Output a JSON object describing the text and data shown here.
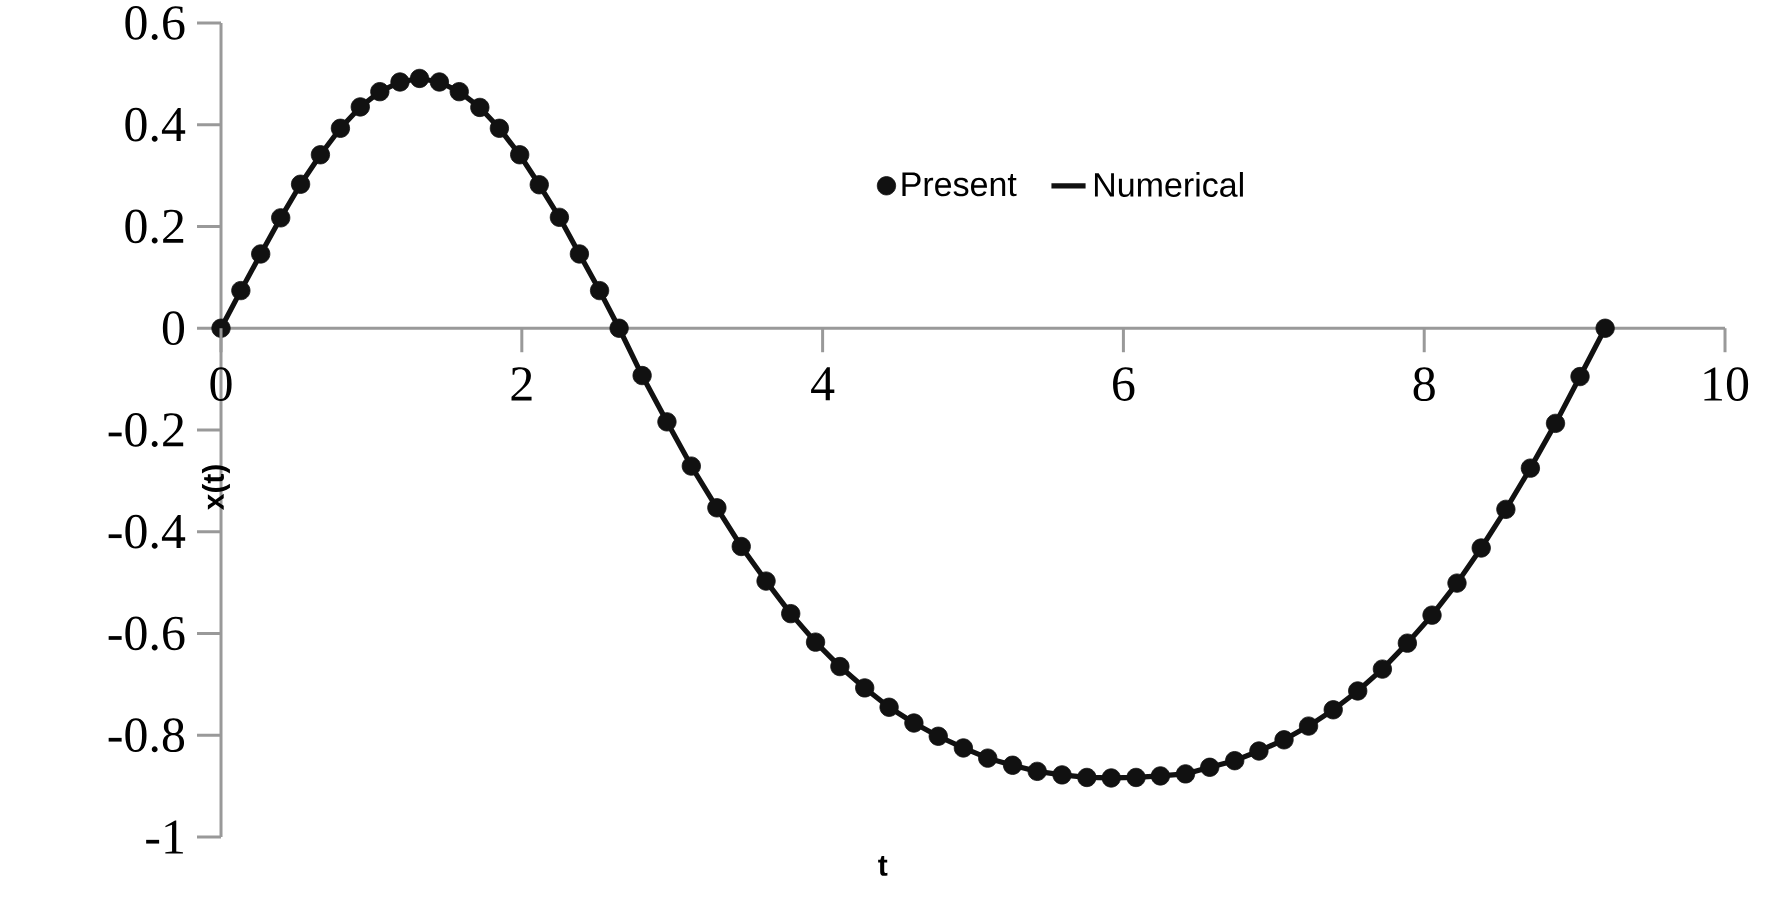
{
  "chart_data": {
    "type": "line",
    "xlabel": "t",
    "ylabel": "x(t)",
    "xlim": [
      0,
      10
    ],
    "ylim": [
      -1,
      0.6
    ],
    "xticks": [
      0,
      2,
      4,
      6,
      8,
      10
    ],
    "yticks": [
      -1,
      -0.8,
      -0.6,
      -0.4,
      -0.2,
      0,
      0.2,
      0.4,
      0.6
    ],
    "grid": false,
    "legend": "top",
    "marker": "circle",
    "series": [
      {
        "name": "Present",
        "type": "scatter",
        "color": "#111111",
        "x": [
          0,
          0.132,
          0.264,
          0.397,
          0.529,
          0.661,
          0.794,
          0.926,
          1.056,
          1.19,
          1.32,
          1.452,
          1.584,
          1.721,
          1.851,
          1.986,
          2.116,
          2.25,
          2.383,
          2.517,
          2.647,
          2.8,
          2.965,
          3.127,
          3.297,
          3.459,
          3.624,
          3.788,
          3.953,
          4.115,
          4.28,
          4.442,
          4.607,
          4.769,
          4.936,
          5.098,
          5.263,
          5.427,
          5.592,
          5.757,
          5.919,
          6.084,
          6.246,
          6.413,
          6.574,
          6.74,
          6.901,
          7.068,
          7.231,
          7.395,
          7.558,
          7.722,
          7.888,
          8.052,
          8.218,
          8.379,
          8.543,
          8.706,
          8.873,
          9.036,
          9.203
        ],
        "values": [
          0,
          0.074,
          0.146,
          0.217,
          0.283,
          0.341,
          0.393,
          0.435,
          0.465,
          0.484,
          0.491,
          0.484,
          0.465,
          0.434,
          0.393,
          0.341,
          0.282,
          0.218,
          0.146,
          0.074,
          0,
          -0.093,
          -0.184,
          -0.271,
          -0.353,
          -0.429,
          -0.497,
          -0.561,
          -0.617,
          -0.665,
          -0.707,
          -0.745,
          -0.776,
          -0.802,
          -0.825,
          -0.845,
          -0.859,
          -0.871,
          -0.878,
          -0.883,
          -0.884,
          -0.883,
          -0.88,
          -0.876,
          -0.863,
          -0.85,
          -0.831,
          -0.809,
          -0.782,
          -0.75,
          -0.713,
          -0.67,
          -0.619,
          -0.564,
          -0.501,
          -0.432,
          -0.356,
          -0.275,
          -0.187,
          -0.095,
          0
        ]
      },
      {
        "name": "Numerical",
        "type": "line",
        "marker": "none",
        "line_style": "solid",
        "color": "#111111",
        "x": [
          0,
          0.132,
          0.264,
          0.397,
          0.529,
          0.661,
          0.794,
          0.926,
          1.056,
          1.19,
          1.32,
          1.452,
          1.584,
          1.721,
          1.851,
          1.986,
          2.116,
          2.25,
          2.383,
          2.517,
          2.647,
          2.8,
          2.965,
          3.127,
          3.297,
          3.459,
          3.624,
          3.788,
          3.953,
          4.115,
          4.28,
          4.442,
          4.607,
          4.769,
          4.936,
          5.098,
          5.263,
          5.427,
          5.592,
          5.757,
          5.919,
          6.084,
          6.246,
          6.413,
          6.574,
          6.74,
          6.901,
          7.068,
          7.231,
          7.395,
          7.558,
          7.722,
          7.888,
          8.052,
          8.218,
          8.379,
          8.543,
          8.706,
          8.873,
          9.036,
          9.203
        ],
        "values": [
          0,
          0.074,
          0.146,
          0.217,
          0.283,
          0.341,
          0.393,
          0.435,
          0.465,
          0.484,
          0.491,
          0.484,
          0.465,
          0.434,
          0.393,
          0.341,
          0.282,
          0.218,
          0.146,
          0.074,
          0,
          -0.093,
          -0.184,
          -0.271,
          -0.353,
          -0.429,
          -0.497,
          -0.561,
          -0.617,
          -0.665,
          -0.707,
          -0.745,
          -0.776,
          -0.802,
          -0.825,
          -0.845,
          -0.859,
          -0.871,
          -0.878,
          -0.883,
          -0.884,
          -0.883,
          -0.88,
          -0.876,
          -0.863,
          -0.85,
          -0.831,
          -0.809,
          -0.782,
          -0.75,
          -0.713,
          -0.67,
          -0.619,
          -0.564,
          -0.501,
          -0.432,
          -0.356,
          -0.275,
          -0.187,
          -0.095,
          0
        ]
      }
    ]
  }
}
